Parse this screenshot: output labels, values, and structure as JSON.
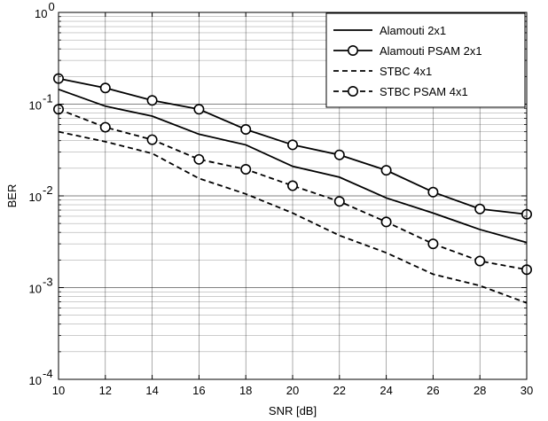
{
  "chart_data": {
    "type": "line",
    "title": "",
    "xlabel": "SNR [dB]",
    "ylabel": "BER",
    "x": [
      10,
      12,
      14,
      16,
      18,
      20,
      22,
      24,
      26,
      28,
      30
    ],
    "xlim": [
      10,
      30
    ],
    "ylim": [
      0.0001,
      1
    ],
    "yscale": "log",
    "grid": true,
    "legend_position": "top-right",
    "x_ticks": [
      "10",
      "12",
      "14",
      "16",
      "18",
      "20",
      "22",
      "24",
      "26",
      "28",
      "30"
    ],
    "y_ticks": [
      {
        "value": 1,
        "base": "10",
        "exp": "0"
      },
      {
        "value": 0.1,
        "base": "10",
        "exp": "-1"
      },
      {
        "value": 0.01,
        "base": "10",
        "exp": "-2"
      },
      {
        "value": 0.001,
        "base": "10",
        "exp": "-3"
      },
      {
        "value": 0.0001,
        "base": "10",
        "exp": "-4"
      }
    ],
    "series": [
      {
        "name": "Alamouti 2x1",
        "style": "solid",
        "marker": "none",
        "color": "#000000",
        "values": [
          0.145,
          0.095,
          0.074,
          0.047,
          0.036,
          0.021,
          0.016,
          0.0095,
          0.0065,
          0.0043,
          0.0031
        ]
      },
      {
        "name": "Alamouti PSAM 2x1",
        "style": "solid",
        "marker": "circle",
        "color": "#000000",
        "values": [
          0.19,
          0.15,
          0.11,
          0.088,
          0.053,
          0.036,
          0.028,
          0.019,
          0.011,
          0.0072,
          0.0063
        ]
      },
      {
        "name": "STBC 4x1",
        "style": "dashed",
        "marker": "none",
        "color": "#000000",
        "values": [
          0.05,
          0.039,
          0.029,
          0.0155,
          0.0105,
          0.0065,
          0.0037,
          0.0024,
          0.0014,
          0.00105,
          0.00068
        ]
      },
      {
        "name": "STBC PSAM 4x1",
        "style": "dashed",
        "marker": "circle",
        "color": "#000000",
        "values": [
          0.088,
          0.056,
          0.041,
          0.025,
          0.0195,
          0.0129,
          0.0087,
          0.0052,
          0.003,
          0.00195,
          0.00157
        ]
      }
    ]
  }
}
